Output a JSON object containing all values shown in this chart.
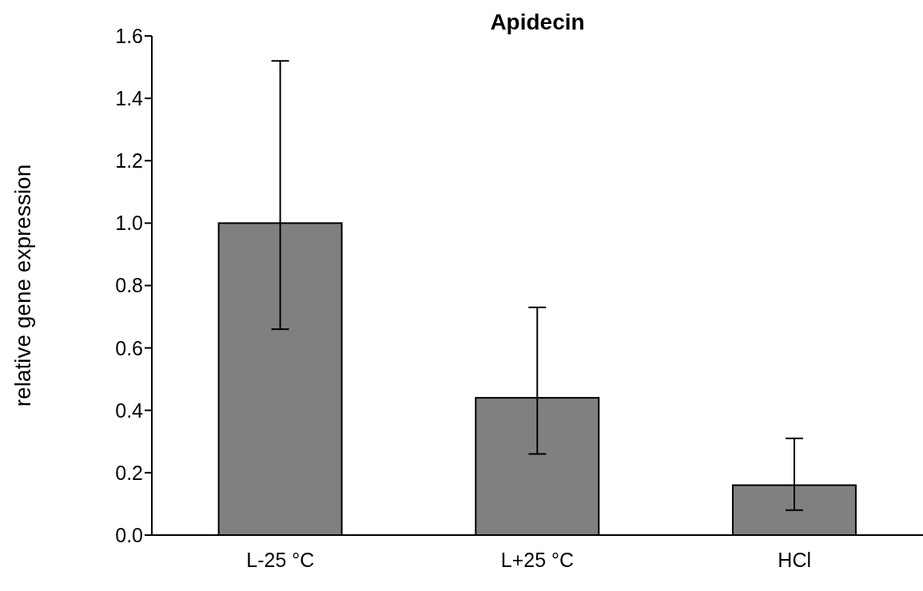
{
  "chart_data": {
    "type": "bar",
    "title": "Apidecin",
    "ylabel": "relative gene expression",
    "categories": [
      "L-25 °C",
      "L+25 °C",
      "HCl"
    ],
    "values": [
      1.0,
      0.44,
      0.16
    ],
    "errors": [
      [
        0.66,
        1.52
      ],
      [
        0.26,
        0.73
      ],
      [
        0.08,
        0.31
      ]
    ],
    "color": "#808080",
    "ylim": [
      0,
      1.6
    ],
    "yticks": [
      {
        "value": 0,
        "label": "0.0"
      },
      {
        "value": 0.2,
        "label": "0.2"
      },
      {
        "value": 0.4,
        "label": "0.4"
      },
      {
        "value": 0.6,
        "label": "0.6"
      },
      {
        "value": 0.8,
        "label": "0.8"
      },
      {
        "value": 1,
        "label": "1.0"
      },
      {
        "value": 1.2,
        "label": "1.2"
      },
      {
        "value": 1.4,
        "label": "1.4"
      },
      {
        "value": 1.6,
        "label": "1.6"
      }
    ]
  }
}
